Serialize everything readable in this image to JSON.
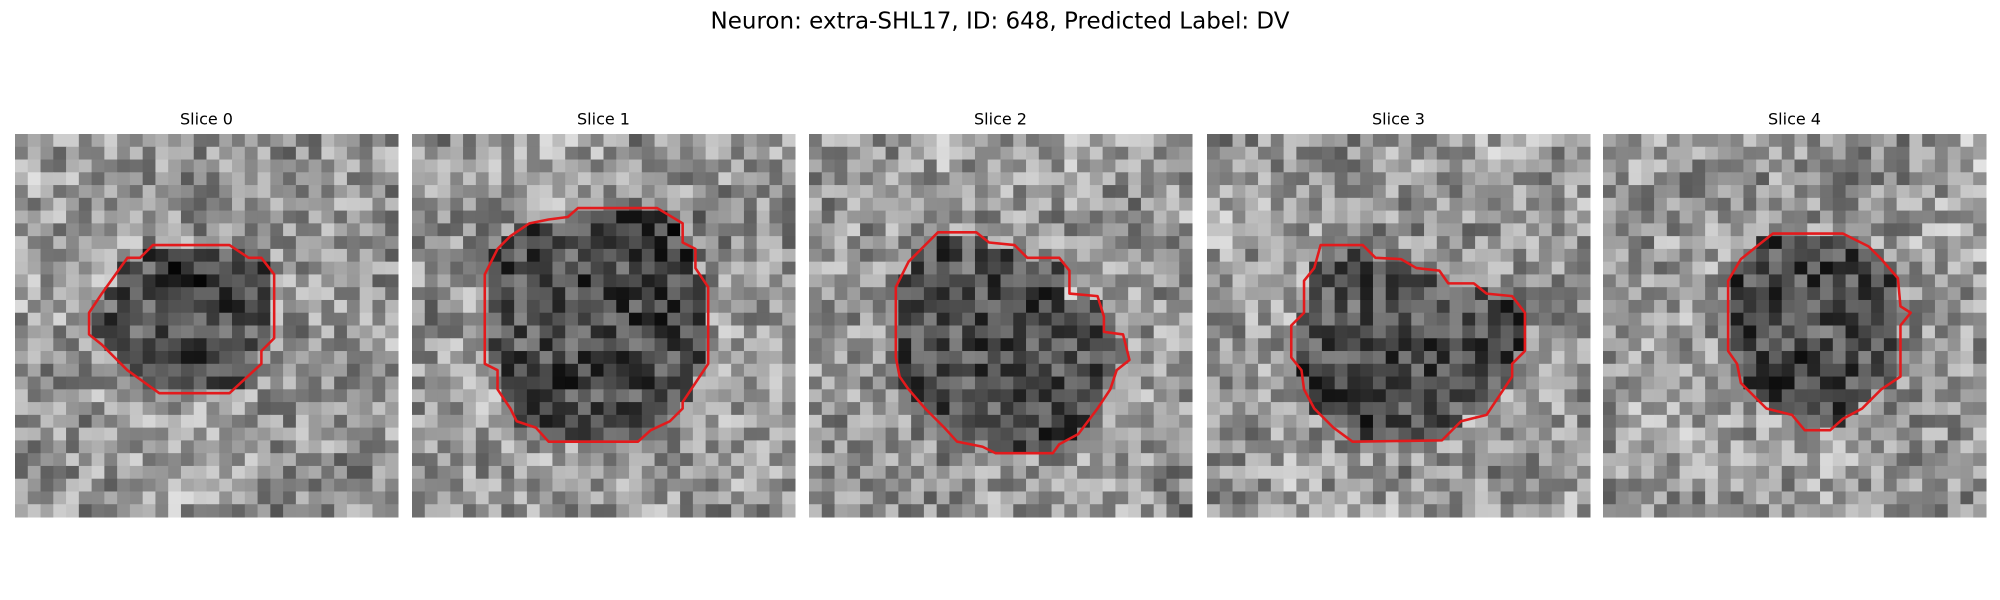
{
  "title": "Neuron: extra-SHL17, ID: 648, Predicted Label: DV",
  "panels": [
    {
      "title": "Slice 0"
    },
    {
      "title": "Slice 1"
    },
    {
      "title": "Slice 2"
    },
    {
      "title": "Slice 3"
    },
    {
      "title": "Slice 4"
    }
  ]
}
